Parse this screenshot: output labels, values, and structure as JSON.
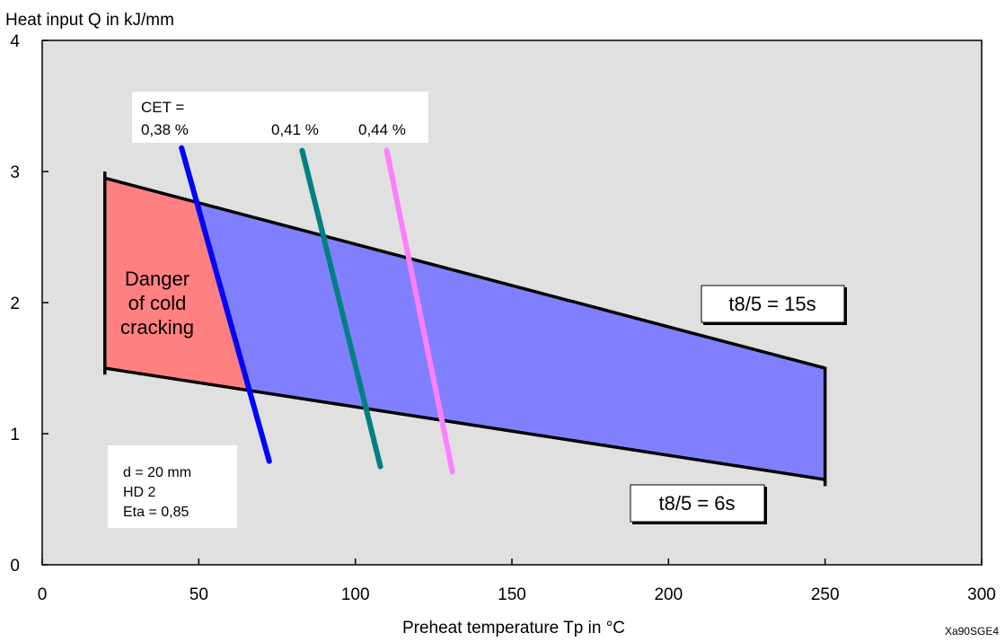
{
  "chart_data": {
    "type": "area",
    "ylabel": "Heat input Q in kJ/mm",
    "xlabel": "Preheat temperature Tp  in °C",
    "xlim": [
      0,
      300
    ],
    "ylim": [
      0,
      4
    ],
    "xticks": [
      "0",
      "50",
      "100",
      "150",
      "200",
      "250",
      "300"
    ],
    "yticks": [
      "0",
      "1",
      "2",
      "3",
      "4"
    ],
    "grid": false,
    "background_color": "#e0e0e0",
    "boundary_lines": [
      {
        "name": "t8/5 = 15s",
        "points": [
          [
            20,
            2.95
          ],
          [
            250,
            1.5
          ]
        ]
      },
      {
        "name": "t8/5 = 6s",
        "points": [
          [
            20,
            1.5
          ],
          [
            250,
            0.65
          ]
        ]
      }
    ],
    "regions": [
      {
        "label_lines": [
          "Danger",
          "of cold",
          "cracking"
        ],
        "color": "#ff8080"
      },
      {
        "label": "",
        "color": "#8080ff"
      }
    ],
    "cet_lines": {
      "title_lines": [
        "CET =",
        "0,38 %"
      ],
      "series": [
        {
          "label": "0,38 %",
          "color": "#0000ff",
          "points": [
            [
              44.5,
              3.18
            ],
            [
              72.5,
              0.79
            ]
          ]
        },
        {
          "label": "0,41 %",
          "color": "#008080",
          "points": [
            [
              83,
              3.16
            ],
            [
              108,
              0.75
            ]
          ]
        },
        {
          "label": "0,44 %",
          "color": "#ff80ff",
          "points": [
            [
              110,
              3.16
            ],
            [
              131,
              0.71
            ]
          ]
        }
      ]
    },
    "notes": [
      "d = 20 mm",
      "HD 2",
      "Eta = 0,85"
    ],
    "reference_code": "Xa90SGE4"
  }
}
